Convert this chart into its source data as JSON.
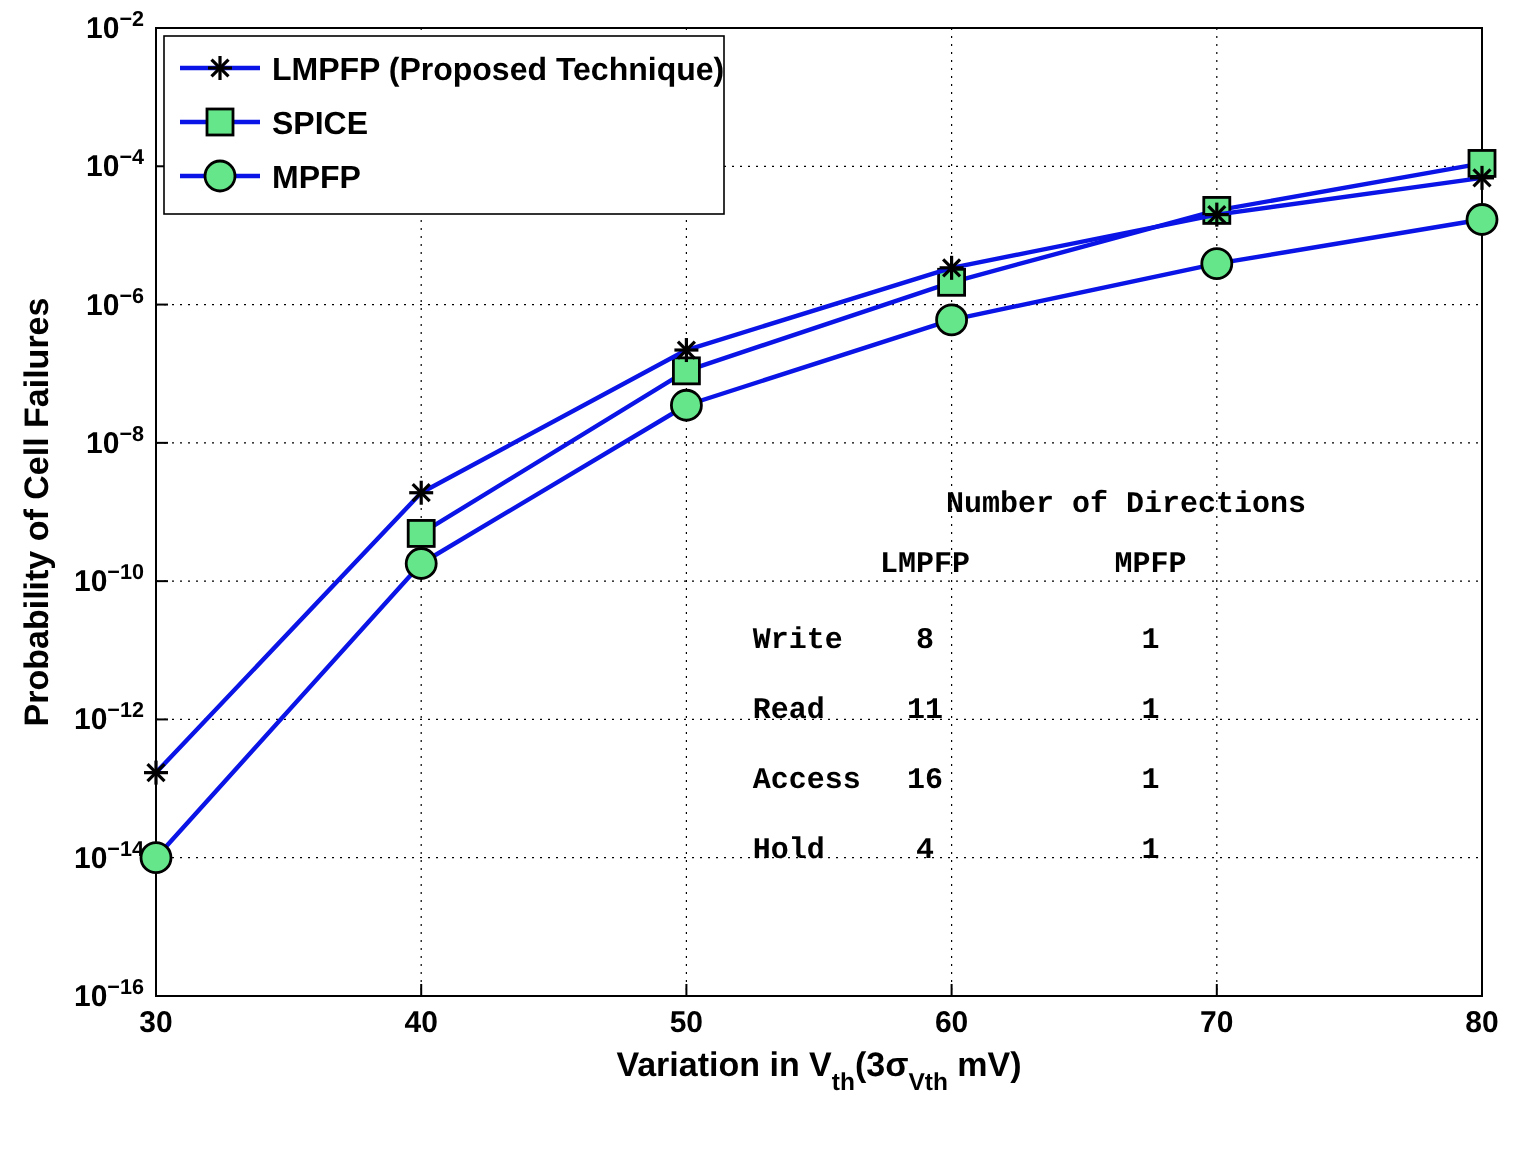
{
  "chart_data": {
    "type": "line",
    "xlabel": "Variation in V$_{th}$(3σ$_{Vth}$ mV)",
    "ylabel": "Probability of Cell Failures",
    "x": [
      30,
      40,
      50,
      60,
      70,
      80
    ],
    "xlim": [
      30,
      80
    ],
    "xticks": [
      30,
      40,
      50,
      60,
      70,
      80
    ],
    "log": "y",
    "ylim": [
      1e-16,
      0.01
    ],
    "yticks": [
      {
        "value": 1e-16,
        "label": "10$^{−16}$"
      },
      {
        "value": 1e-14,
        "label": "10$^{−14}$"
      },
      {
        "value": 1e-12,
        "label": "10$^{−12}$"
      },
      {
        "value": 1e-10,
        "label": "10$^{−10}$"
      },
      {
        "value": 1e-08,
        "label": "10$^{−8}$"
      },
      {
        "value": 1e-06,
        "label": "10$^{−6}$"
      },
      {
        "value": 0.0001,
        "label": "10$^{−4}$"
      },
      {
        "value": 0.01,
        "label": "10$^{−2}$"
      }
    ],
    "grid": true,
    "legend": "top left",
    "line_style": "solid",
    "series": [
      {
        "name": "LMPFP (Proposed Technique)",
        "color": "#0a14e6",
        "marker": "cross",
        "values": [
          1.7e-13,
          1.9e-09,
          2.2e-07,
          3.4e-06,
          2e-05,
          6.8e-05
        ]
      },
      {
        "name": "SPICE",
        "color": "#0a14e6",
        "marker": "square",
        "values": [
          null,
          4.9e-10,
          1.1e-07,
          2.1e-06,
          2.3e-05,
          0.00011
        ]
      },
      {
        "name": "MPFP",
        "color": "#0a14e6",
        "marker": "circle",
        "values": [
          1e-14,
          1.8e-10,
          3.5e-08,
          6e-07,
          3.9e-06,
          1.7e-05
        ]
      }
    ],
    "annotations": [
      "Number of Directions",
      "LMPFP",
      "MPFP",
      "Write",
      "8",
      "1",
      "Read",
      "11",
      "1",
      "Access",
      "16",
      "1",
      "Hold",
      "4",
      "1"
    ]
  }
}
